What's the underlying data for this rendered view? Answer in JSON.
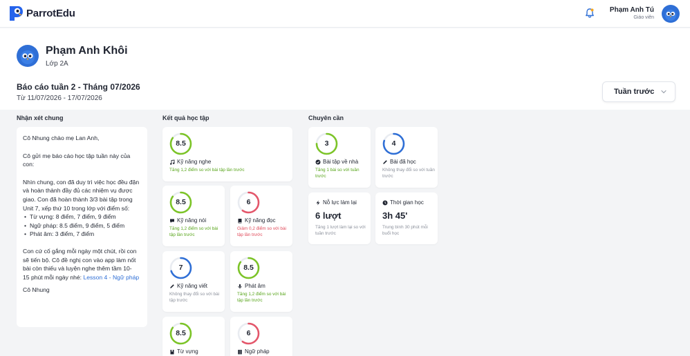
{
  "app": {
    "name": "ParrotEdu"
  },
  "user": {
    "name": "Phạm Anh Tú",
    "role": "Giáo viên"
  },
  "student": {
    "name": "Phạm Anh Khôi",
    "class": "Lớp 2A"
  },
  "report": {
    "title": "Báo cáo tuần 2 - Tháng 07/2026",
    "range": "Từ 11/07/2026 - 17/07/2026",
    "week_button": "Tuần trước"
  },
  "sections": {
    "comments": "Nhận xét chung",
    "results": "Kết quả học tập",
    "attendance": "Chuyên cần"
  },
  "comment": {
    "greeting": "Cô Nhung chào mẹ Lan Anh,",
    "intro": "Cô gửi mẹ báo cáo học tập tuần này của con:",
    "body": "Nhìn chung, con đã duy trì việc học đều đặn và hoàn thành đầy đủ các nhiệm vụ được giao. Con đã hoàn thành 3/3 bài tập trong Unit 7, xếp thứ 10 trong lớp với điểm số:",
    "bullets": [
      "Từ vựng: 8 điểm, 7 điểm, 9 điểm",
      "Ngữ pháp: 8.5 điểm, 9 điểm, 5 điểm",
      "Phát âm: 3 điểm, 7 điểm"
    ],
    "closing": "Con cứ cố gắng mỗi ngày một chút, rồi con sẽ tiến bộ. Cô đề nghị con vào app làm nốt bài còn thiếu và luyện nghe thêm tầm 10-",
    "closing2": "15 phút mỗi ngày nhé: ",
    "link": "Lesson 4 - Ngữ pháp",
    "signature": "Cô Nhung"
  },
  "skills": [
    {
      "value": "8.5",
      "label": "Kỹ năng nghe",
      "note": "Tăng 1,2 điểm so với bài tập lần trước",
      "trend": "up",
      "progress": 0.85,
      "icon": "music-note-icon"
    },
    {
      "value": "8.5",
      "label": "Kỹ năng nói",
      "note": "Tăng 1,2 điểm so với bài tập lần trước",
      "trend": "up",
      "progress": 0.85,
      "icon": "chat-icon"
    },
    {
      "value": "6",
      "label": "Kỹ năng đọc",
      "note": "Giảm 0,2 điểm so với bài tập lần trước",
      "trend": "down",
      "progress": 0.6,
      "icon": "book-icon"
    },
    {
      "value": "7",
      "label": "Kỹ năng viết",
      "note": "Không thay đổi so với bài tập trước",
      "trend": "same",
      "progress": 0.7,
      "icon": "pencil-icon"
    },
    {
      "value": "8.5",
      "label": "Phát âm",
      "note": "Tăng 1,2 điểm so với bài tập lần trước",
      "trend": "up",
      "progress": 0.85,
      "icon": "microphone-icon"
    },
    {
      "value": "8.5",
      "label": "Từ vựng",
      "note": "",
      "trend": "up",
      "progress": 0.85,
      "icon": "bookmark-icon"
    },
    {
      "value": "6",
      "label": "Ngữ pháp",
      "note": "",
      "trend": "down",
      "progress": 0.6,
      "icon": "grammar-book-icon"
    }
  ],
  "attendance": [
    {
      "value": "3",
      "label": "Bài tập về nhà",
      "note": "Tăng 1 bài so với tuần trước",
      "trend": "up",
      "progress": 0.75,
      "icon": "check-circle-icon"
    },
    {
      "value": "4",
      "label": "Bài đã học",
      "note": "Không thay đổi so với tuần trước",
      "trend": "same",
      "progress": 0.8,
      "icon": "pencil-icon"
    },
    {
      "value": "6 lượt",
      "label": "Nỗ lực làm lại",
      "note": "Tăng 1 lượt làm lại so với tuần trước",
      "icon": "lightning-icon"
    },
    {
      "value": "3h 45'",
      "label": "Thời gian học",
      "note": "Trung bình 30 phút mỗi buổi học",
      "icon": "clock-icon"
    }
  ],
  "colors": {
    "up": "#7cc427",
    "down": "#e4566a",
    "same": "#2f6fd6",
    "ring_bg": "#e9ecf1"
  }
}
